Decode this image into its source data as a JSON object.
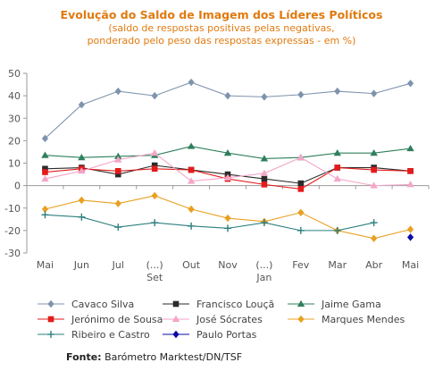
{
  "header": {
    "title": "Evolução do Saldo  de Imagem dos Líderes Políticos",
    "subtitle_1": "(saldo de respostas positivas pelas negativas,",
    "subtitle_2": "ponderado pelo peso das respostas expressas - em %)"
  },
  "footer": {
    "source_label": "Fonte:",
    "source_text": " Barómetro Marktest/DN/TSF"
  },
  "chart_data": {
    "type": "line",
    "x_tick_labels": [
      [
        "Mai"
      ],
      [
        "Jun"
      ],
      [
        "Jul"
      ],
      [
        "(...)",
        "Set"
      ],
      [
        "Out"
      ],
      [
        "Nov"
      ],
      [
        "(...)",
        "Jan"
      ],
      [
        "Fev"
      ],
      [
        "Mar"
      ],
      [
        "Abr"
      ],
      [
        "Mai"
      ]
    ],
    "ylim": [
      -30,
      50
    ],
    "yticks": [
      -30,
      -20,
      -10,
      0,
      10,
      20,
      30,
      40,
      50
    ],
    "grid": false,
    "legend_position": "bottom",
    "series": [
      {
        "name": "Cavaco Silva",
        "color": "#7f93ad",
        "marker": "diamond",
        "values": [
          21,
          36,
          42,
          40,
          46,
          40,
          39.5,
          40.5,
          42,
          41,
          45.5
        ]
      },
      {
        "name": "Francisco Louçã",
        "color": "#2b2b2b",
        "marker": "square",
        "values": [
          7.5,
          8,
          5,
          9,
          7,
          5,
          3,
          1,
          8,
          8,
          6.5
        ]
      },
      {
        "name": "Jaime Gama",
        "color": "#2f7f5c",
        "marker": "triangle",
        "values": [
          13.5,
          12.5,
          13,
          13.5,
          17.5,
          14.5,
          12,
          12.5,
          14.5,
          14.5,
          16.5
        ]
      },
      {
        "name": "Jerónimo de Sousa",
        "color": "#e31b1b",
        "marker": "square",
        "values": [
          6,
          7.5,
          6.5,
          7.5,
          7,
          3,
          0.5,
          -1.5,
          8,
          7,
          6.5
        ]
      },
      {
        "name": "José Sócrates",
        "color": "#f4a6c8",
        "marker": "triangle",
        "values": [
          3,
          6.5,
          11.5,
          14.5,
          2,
          3.5,
          5.5,
          12.5,
          3,
          0,
          0.5
        ]
      },
      {
        "name": "Marques Mendes",
        "color": "#e8a020",
        "marker": "diamond",
        "values": [
          -10.5,
          -6.5,
          -8,
          -4.5,
          -10.5,
          -14.5,
          -16,
          -12,
          -20,
          -23.5,
          -19.5
        ]
      },
      {
        "name": "Ribeiro e Castro",
        "color": "#2e7f7f",
        "marker": "plus",
        "values": [
          -13,
          -14,
          -18.5,
          -16.5,
          -18,
          -19,
          -16.5,
          -20,
          -20,
          -16.5,
          null
        ]
      },
      {
        "name": "Paulo Portas",
        "color": "#0a0aa8",
        "marker": "diamond",
        "values": [
          null,
          null,
          null,
          null,
          null,
          null,
          null,
          null,
          null,
          null,
          -23
        ]
      }
    ]
  }
}
